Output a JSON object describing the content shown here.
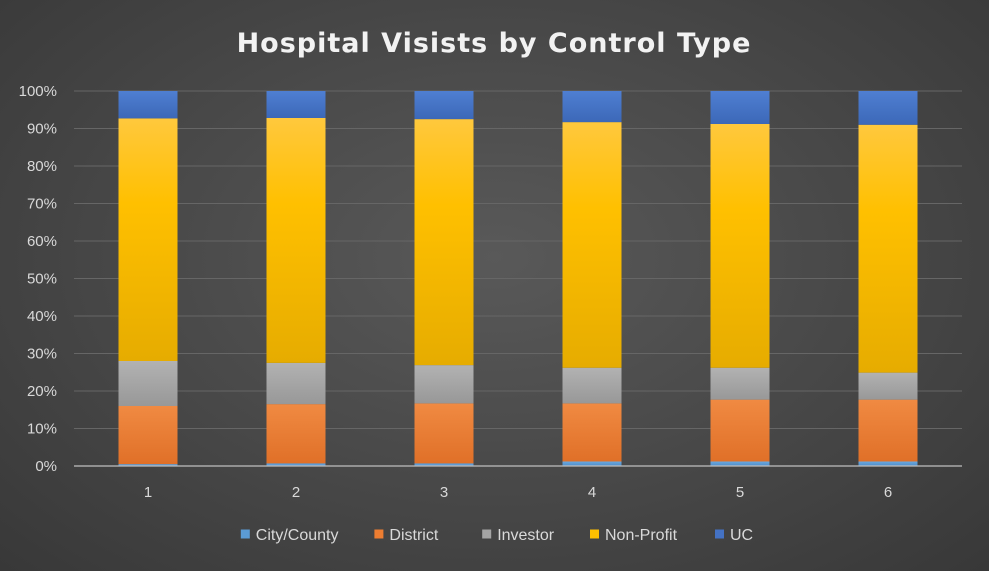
{
  "chart_data": {
    "type": "bar",
    "stacked": true,
    "percent_stacked": true,
    "title": "Hospital Visists by Control Type",
    "categories": [
      "1",
      "2",
      "3",
      "4",
      "5",
      "6"
    ],
    "series": [
      {
        "name": "City/County",
        "color": "#5b9bd5",
        "values": [
          0.5,
          0.7,
          0.7,
          1.2,
          1.2,
          1.2
        ]
      },
      {
        "name": "District",
        "color": "#ed7d31",
        "values": [
          15.5,
          15.8,
          16.0,
          15.5,
          16.5,
          16.5
        ]
      },
      {
        "name": "Investor",
        "color": "#a5a5a5",
        "values": [
          12.0,
          11.0,
          10.2,
          9.5,
          8.5,
          7.2
        ]
      },
      {
        "name": "Non-Profit",
        "color": "#ffc000",
        "values": [
          64.7,
          65.3,
          65.6,
          65.5,
          65.0,
          66.1
        ]
      },
      {
        "name": "UC",
        "color": "#4472c4",
        "values": [
          7.3,
          7.2,
          7.5,
          8.3,
          8.8,
          9.0
        ]
      }
    ],
    "y_ticks": [
      "0%",
      "10%",
      "20%",
      "30%",
      "40%",
      "50%",
      "60%",
      "70%",
      "80%",
      "90%",
      "100%"
    ],
    "ylim": [
      0,
      100
    ],
    "grid": true,
    "legend_position": "bottom"
  }
}
